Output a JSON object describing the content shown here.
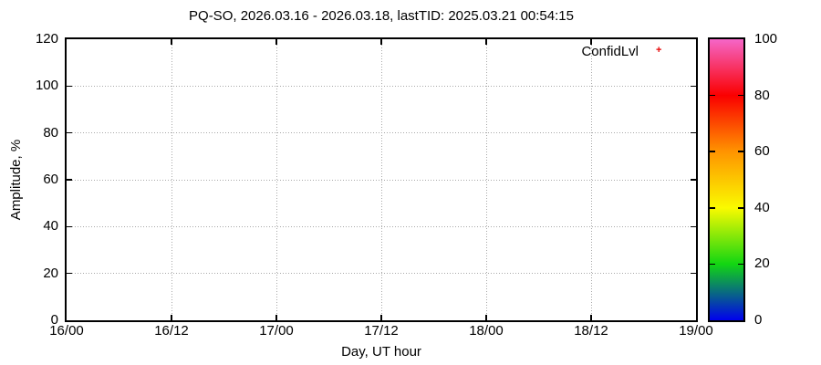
{
  "title": "PQ-SO, 2026.03.16 - 2026.03.18, lastTID: 2025.03.21 00:54:15",
  "chart_data": {
    "type": "scatter",
    "title": "PQ-SO, 2026.03.16 - 2026.03.18, lastTID: 2025.03.21 00:54:15",
    "xlabel": "Day, UT hour",
    "ylabel": "Amplitude, %",
    "x_tick_labels": [
      "16/00",
      "16/12",
      "17/00",
      "17/12",
      "18/00",
      "18/12",
      "19/00"
    ],
    "y_tick_values": [
      0,
      20,
      40,
      60,
      80,
      100,
      120
    ],
    "ylim": [
      0,
      120
    ],
    "grid": true,
    "grid_style": "dotted",
    "legend": {
      "label": "ConfidLvl",
      "marker": "+",
      "marker_color": "#e60000",
      "position": "top-right-inside"
    },
    "series": [
      {
        "name": "ConfidLvl",
        "points": []
      }
    ],
    "colorbar": {
      "range": [
        0,
        100
      ],
      "tick_values": [
        0,
        20,
        40,
        60,
        80,
        100
      ],
      "palette_stops": [
        {
          "value": 0,
          "color": "#0000ee"
        },
        {
          "value": 20,
          "color": "#12d612"
        },
        {
          "value": 40,
          "color": "#fafa00"
        },
        {
          "value": 60,
          "color": "#ff9400"
        },
        {
          "value": 80,
          "color": "#fa0000"
        },
        {
          "value": 100,
          "color": "#f566c8"
        }
      ]
    },
    "colors": {
      "border": "#000000",
      "grid": "#a8a8a8",
      "background": "#ffffff",
      "text": "#000000"
    }
  }
}
